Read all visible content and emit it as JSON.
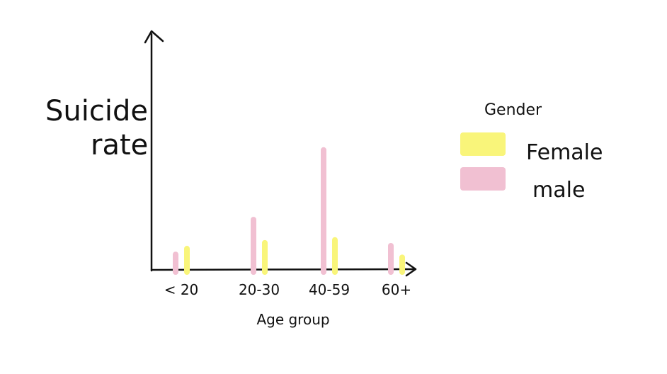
{
  "chart_data": {
    "type": "bar",
    "ylabel_lines": [
      "Suicide",
      "rate"
    ],
    "xlabel": "Age group",
    "categories": [
      "< 20",
      "20-30",
      "40-59",
      "60+"
    ],
    "series": [
      {
        "name": "Female",
        "color": "#f9f57a",
        "values": [
          0.5,
          0.6,
          0.65,
          0.35
        ]
      },
      {
        "name": "male",
        "color": "#f1c0d2",
        "values": [
          0.4,
          1.0,
          2.2,
          0.55
        ]
      }
    ],
    "ylim": [
      0,
      2.6
    ],
    "grid": false,
    "legend": {
      "title": "Gender",
      "placement": "right"
    }
  }
}
